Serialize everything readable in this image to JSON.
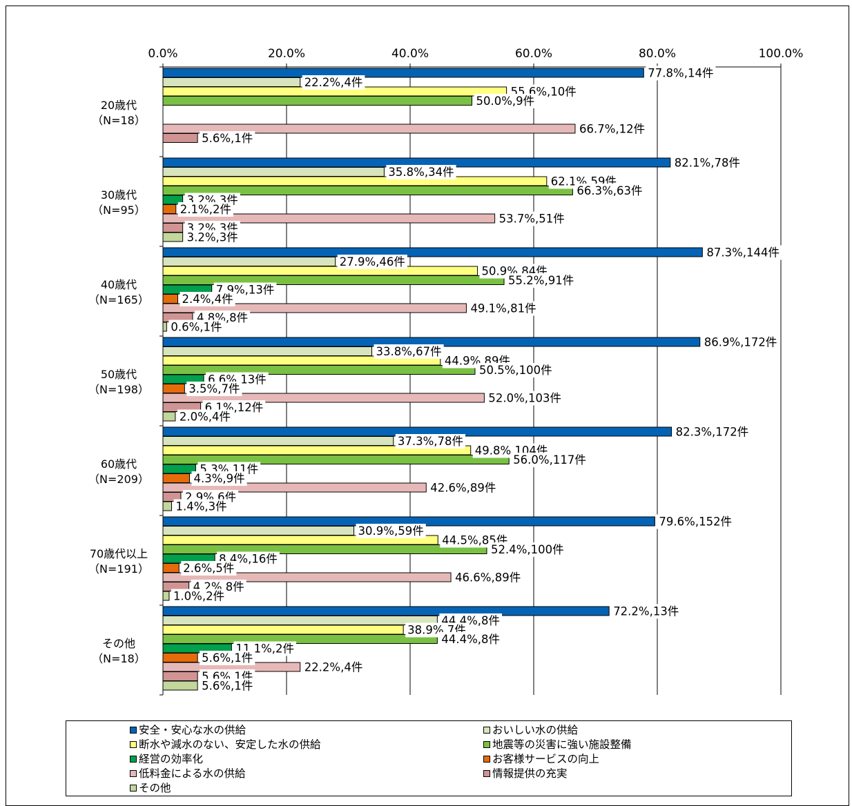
{
  "chart_data": {
    "type": "bar",
    "orientation": "horizontal",
    "x_ticks": [
      "0.0%",
      "20.0%",
      "40.0%",
      "60.0%",
      "80.0%",
      "100.0%"
    ],
    "xlim": [
      0,
      100
    ],
    "grid": true,
    "legend_position": "bottom",
    "categories": [
      {
        "line1": "20歳代",
        "line2": "（N=18）"
      },
      {
        "line1": "30歳代",
        "line2": "（N=95）"
      },
      {
        "line1": "40歳代",
        "line2": "（N=165）"
      },
      {
        "line1": "50歳代",
        "line2": "（N=198）"
      },
      {
        "line1": "60歳代",
        "line2": "（N=209）"
      },
      {
        "line1": "70歳代以上",
        "line2": "（N=191）"
      },
      {
        "line1": "その他",
        "line2": "（N=18）"
      }
    ],
    "series": [
      {
        "name": "安全・安心な水の供給",
        "color": "#0563b5",
        "values": [
          77.8,
          82.1,
          87.3,
          86.9,
          82.3,
          79.6,
          72.2
        ],
        "labels": [
          "77.8%,14件",
          "82.1%,78件",
          "87.3%,144件",
          "86.9%,172件",
          "82.3%,172件",
          "79.6%,152件",
          "72.2%,13件"
        ]
      },
      {
        "name": "おいしい水の供給",
        "color": "#d7e4bd",
        "values": [
          22.2,
          35.8,
          27.9,
          33.8,
          37.3,
          30.9,
          44.4
        ],
        "labels": [
          "22.2%,4件",
          "35.8%,34件",
          "27.9%,46件",
          "33.8%,67件",
          "37.3%,78件",
          "30.9%,59件",
          "44.4%,8件"
        ]
      },
      {
        "name": "断水や減水のない、安定した水の供給",
        "color": "#ffff80",
        "values": [
          55.6,
          62.1,
          50.9,
          44.9,
          49.8,
          44.5,
          38.9
        ],
        "labels": [
          "55.6%,10件",
          "62.1%,59件",
          "50.9%,84件",
          "44.9%,89件",
          "49.8%,104件",
          "44.5%,85件",
          "38.9%,7件"
        ]
      },
      {
        "name": "地震等の災害に強い施設整備",
        "color": "#7ac143",
        "values": [
          50.0,
          66.3,
          55.2,
          50.5,
          56.0,
          52.4,
          44.4
        ],
        "labels": [
          "50.0%,9件",
          "66.3%,63件",
          "55.2%,91件",
          "50.5%,100件",
          "56.0%,117件",
          "52.4%,100件",
          "44.4%,8件"
        ]
      },
      {
        "name": "経営の効率化",
        "color": "#00a04c",
        "values": [
          null,
          3.2,
          7.9,
          6.6,
          5.3,
          8.4,
          11.1
        ],
        "labels": [
          null,
          "3.2%,3件",
          "7.9%,13件",
          "6.6%,13件",
          "5.3%,11件",
          "8.4%,16件",
          "11.1%,2件"
        ]
      },
      {
        "name": "お客様サービスの向上",
        "color": "#e46c0a",
        "values": [
          null,
          2.1,
          2.4,
          3.5,
          4.3,
          2.6,
          5.6
        ],
        "labels": [
          null,
          "2.1%,2件",
          "2.4%,4件",
          "3.5%,7件",
          "4.3%,9件",
          "2.6%,5件",
          "5.6%,1件"
        ]
      },
      {
        "name": "低料金による水の供給",
        "color": "#e6b9b8",
        "values": [
          66.7,
          53.7,
          49.1,
          52.0,
          42.6,
          46.6,
          22.2
        ],
        "labels": [
          "66.7%,12件",
          "53.7%,51件",
          "49.1%,81件",
          "52.0%,103件",
          "42.6%,89件",
          "46.6%,89件",
          "22.2%,4件"
        ]
      },
      {
        "name": "情報提供の充実",
        "color": "#d09494",
        "values": [
          5.6,
          3.2,
          4.8,
          6.1,
          2.9,
          4.2,
          5.6
        ],
        "labels": [
          "5.6%,1件",
          "3.2%,3件",
          "4.8%,8件",
          "6.1%,12件",
          "2.9%,6件",
          "4.2%,8件",
          "5.6%,1件"
        ]
      },
      {
        "name": "その他",
        "color": "#c3d69b",
        "values": [
          null,
          3.2,
          0.6,
          2.0,
          1.4,
          1.0,
          5.6
        ],
        "labels": [
          null,
          "3.2%,3件",
          "0.6%,1件",
          "2.0%,4件",
          "1.4%,3件",
          "1.0%,2件",
          "5.6%,1件"
        ]
      }
    ]
  }
}
